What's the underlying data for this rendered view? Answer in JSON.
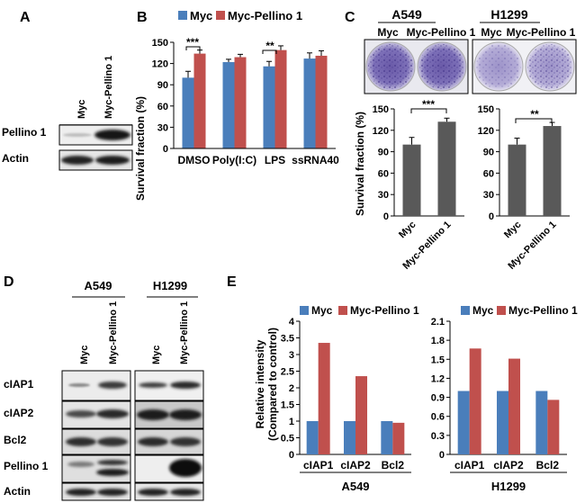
{
  "panels": {
    "A": {
      "letter": "A",
      "lanes": [
        "Myc",
        "Myc-Pellino 1"
      ],
      "rows": [
        "Pellino 1",
        "Actin"
      ]
    },
    "B": {
      "letter": "B",
      "legend": [
        "Myc",
        "Myc-Pellino 1"
      ],
      "significance": [
        "***",
        "**"
      ]
    },
    "C": {
      "letter": "C",
      "cell_lines": [
        "A549",
        "H1299"
      ],
      "plate_labels": [
        "Myc",
        "Myc-Pellino 1",
        "Myc",
        "Myc-Pellino 1"
      ],
      "significance": [
        "***",
        "**"
      ]
    },
    "D": {
      "letter": "D",
      "cell_lines": [
        "A549",
        "H1299"
      ],
      "lanes": [
        "Myc",
        "Myc-Pellino 1",
        "Myc",
        "Myc-Pellino 1"
      ],
      "rows": [
        "cIAP1",
        "cIAP2",
        "Bcl2",
        "Pellino 1",
        "Actin"
      ]
    },
    "E": {
      "letter": "E",
      "legend": [
        "Myc",
        "Myc-Pellino 1"
      ],
      "ylabel_line1": "Relative intensity",
      "ylabel_line2": "(Compared to control)",
      "cell_lines": [
        "A549",
        "H1299"
      ]
    }
  },
  "colors": {
    "myc": "#4a7ebb",
    "pellino": "#c0504d",
    "gray_bar": "#595959"
  },
  "chart_data": [
    {
      "id": "B",
      "type": "bar",
      "categories": [
        "DMSO",
        "Poly(I:C)",
        "LPS",
        "ssRNA40"
      ],
      "series": [
        {
          "name": "Myc",
          "values": [
            100,
            122,
            116,
            127
          ],
          "errors": [
            9,
            4,
            7,
            8
          ]
        },
        {
          "name": "Myc-Pellino 1",
          "values": [
            134,
            129,
            139,
            131
          ],
          "errors": [
            5,
            4,
            6,
            7
          ]
        }
      ],
      "ylabel": "Survival fraction (%)",
      "ylim": [
        0,
        150
      ],
      "yticks": [
        0,
        30,
        60,
        90,
        120,
        150
      ],
      "legend": "top"
    },
    {
      "id": "C-A549",
      "type": "bar",
      "categories": [
        "Myc",
        "Myc-Pellino 1"
      ],
      "values": [
        100,
        132
      ],
      "errors": [
        10,
        5
      ],
      "ylabel": "Survival fraction (%)",
      "ylim": [
        0,
        150
      ],
      "yticks": [
        0,
        30,
        60,
        90,
        120,
        150
      ]
    },
    {
      "id": "C-H1299",
      "type": "bar",
      "categories": [
        "Myc",
        "Myc-Pellino 1"
      ],
      "values": [
        100,
        126
      ],
      "errors": [
        9,
        5
      ],
      "ylim": [
        0,
        150
      ],
      "yticks": [
        0,
        30,
        60,
        90,
        120,
        150
      ]
    },
    {
      "id": "E-A549",
      "type": "bar",
      "categories": [
        "cIAP1",
        "cIAP2",
        "Bcl2"
      ],
      "series": [
        {
          "name": "Myc",
          "values": [
            1,
            1,
            1
          ]
        },
        {
          "name": "Myc-Pellino 1",
          "values": [
            3.35,
            2.35,
            0.95
          ]
        }
      ],
      "ylim": [
        0,
        4
      ],
      "yticks": [
        0,
        0.5,
        1,
        1.5,
        2,
        2.5,
        3,
        3.5,
        4
      ],
      "legend": "top"
    },
    {
      "id": "E-H1299",
      "type": "bar",
      "categories": [
        "cIAP1",
        "cIAP2",
        "Bcl2"
      ],
      "series": [
        {
          "name": "Myc",
          "values": [
            1,
            1,
            1
          ]
        },
        {
          "name": "Myc-Pellino 1",
          "values": [
            1.67,
            1.51,
            0.86
          ]
        }
      ],
      "ylim": [
        0,
        2.1
      ],
      "yticks": [
        0,
        0.3,
        0.6,
        0.9,
        1.2,
        1.5,
        1.8,
        2.1
      ],
      "legend": "top"
    }
  ]
}
